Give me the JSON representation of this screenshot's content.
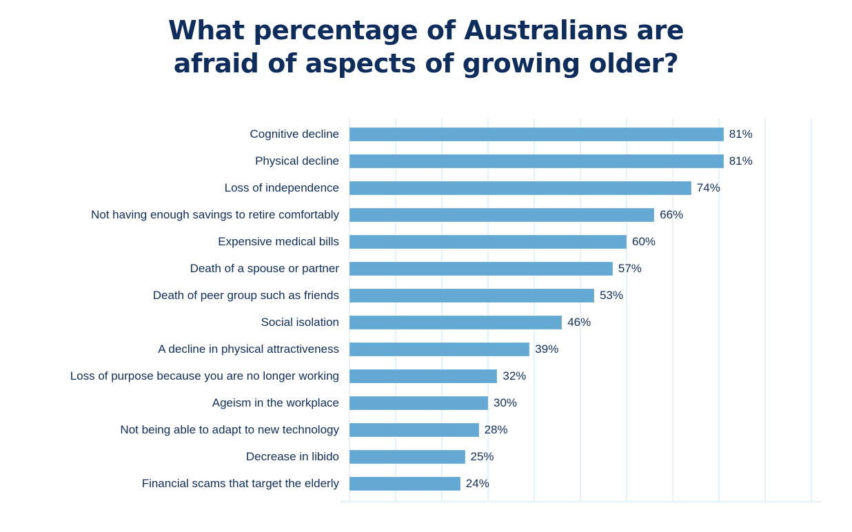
{
  "title": {
    "line1": "What percentage of Australians are",
    "line2": "afraid of aspects of growing older?"
  },
  "colors": {
    "title": "#0f2d5c",
    "bar": "#64a9d4",
    "grid": "#e6f2fb",
    "text": "#0f2d5c"
  },
  "chart_data": {
    "type": "bar",
    "orientation": "horizontal",
    "title": "What percentage of Australians are afraid of aspects of growing older?",
    "xlabel": "",
    "ylabel": "",
    "xlim": [
      0,
      100
    ],
    "grid": true,
    "grid_interval": 10,
    "legend": null,
    "categories": [
      "Cognitive decline",
      "Physical decline",
      "Loss of independence",
      "Not having enough savings to retire comfortably",
      "Expensive medical bills",
      "Death of a spouse or partner",
      "Death of peer group such as friends",
      "Social isolation",
      "A decline in physical attractiveness",
      "Loss of purpose because you are no longer working",
      "Ageism in the workplace",
      "Not being able to adapt to new technology",
      "Decrease in libido",
      "Financial scams that target the elderly"
    ],
    "values": [
      81,
      81,
      74,
      66,
      60,
      57,
      53,
      46,
      39,
      32,
      30,
      28,
      25,
      24
    ],
    "value_labels": [
      "81%",
      "81%",
      "74%",
      "66%",
      "60%",
      "57%",
      "53%",
      "46%",
      "39%",
      "32%",
      "30%",
      "28%",
      "25%",
      "24%"
    ]
  }
}
